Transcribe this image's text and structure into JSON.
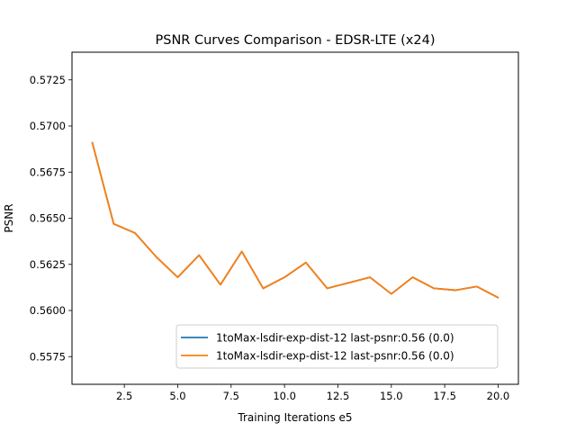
{
  "chart_data": {
    "type": "line",
    "title": "PSNR Curves Comparison - EDSR-LTE (x24)",
    "xlabel": "Training Iterations e5",
    "ylabel": "PSNR",
    "xlim": [
      0.05,
      20.95
    ],
    "ylim": [
      0.556,
      0.574
    ],
    "xticks": [
      2.5,
      5.0,
      7.5,
      10.0,
      12.5,
      15.0,
      17.5,
      20.0
    ],
    "xtick_labels": [
      "2.5",
      "5.0",
      "7.5",
      "10.0",
      "12.5",
      "15.0",
      "17.5",
      "20.0"
    ],
    "yticks": [
      0.5575,
      0.56,
      0.5625,
      0.565,
      0.5675,
      0.57,
      0.5725
    ],
    "ytick_labels": [
      "0.5575",
      "0.5600",
      "0.5625",
      "0.5650",
      "0.5675",
      "0.5700",
      "0.5725"
    ],
    "grid": false,
    "legend_position": "lower-right",
    "x": [
      1,
      2,
      3,
      4,
      5,
      6,
      7,
      8,
      9,
      10,
      11,
      12,
      13,
      14,
      15,
      16,
      17,
      18,
      19,
      20
    ],
    "series": [
      {
        "name": "1toMax-lsdir-exp-dist-12 last-psnr:0.56 (0.0)",
        "color": "#1f77b4",
        "values": [
          0.5691,
          0.5647,
          0.5642,
          0.5629,
          0.5618,
          0.563,
          0.5614,
          0.5632,
          0.5612,
          0.5618,
          0.5626,
          0.5612,
          0.5615,
          0.5618,
          0.5609,
          0.5618,
          0.5612,
          0.5611,
          0.5613,
          0.5607
        ]
      },
      {
        "name": "1toMax-lsdir-exp-dist-12 last-psnr:0.56 (0.0)",
        "color": "#ff7f0e",
        "values": [
          0.5691,
          0.5647,
          0.5642,
          0.5629,
          0.5618,
          0.563,
          0.5614,
          0.5632,
          0.5612,
          0.5618,
          0.5626,
          0.5612,
          0.5615,
          0.5618,
          0.5609,
          0.5618,
          0.5612,
          0.5611,
          0.5613,
          0.5607
        ]
      }
    ]
  }
}
